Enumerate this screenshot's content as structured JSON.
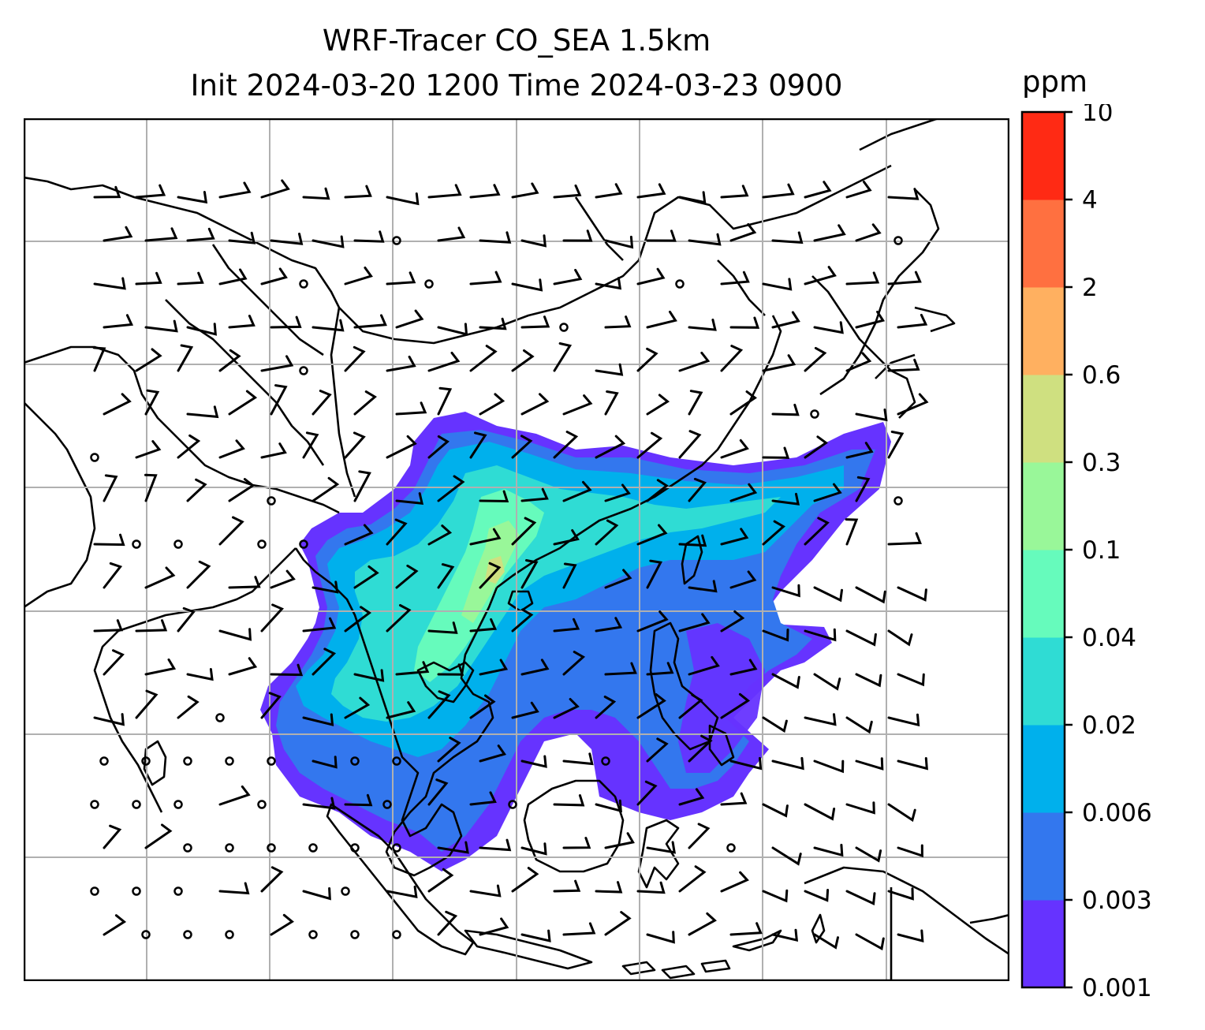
{
  "title": {
    "line1": "WRF-Tracer CO_SEA 1.5km",
    "line2": "Init 2024-03-20 1200 Time 2024-03-23 0900"
  },
  "colorbar": {
    "unit": "ppm",
    "levels": [
      "0.001",
      "0.003",
      "0.006",
      "0.02",
      "0.04",
      "0.1",
      "0.3",
      "0.6",
      "2",
      "4",
      "10"
    ],
    "colors": [
      "#6633ff",
      "#3377ee",
      "#00b0ec",
      "#2fdcd4",
      "#66fbbc",
      "#99f799",
      "#cfe080",
      "#ffb060",
      "#ff7040",
      "#ff2a14"
    ]
  },
  "map": {
    "gridlines": true,
    "coastline_color": "#000000",
    "grid_color": "#b0b0b0"
  }
}
